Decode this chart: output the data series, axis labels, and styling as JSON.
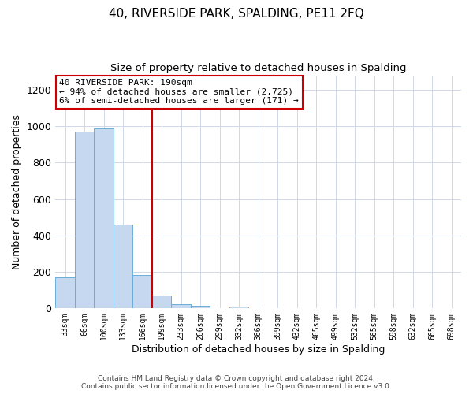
{
  "title": "40, RIVERSIDE PARK, SPALDING, PE11 2FQ",
  "subtitle": "Size of property relative to detached houses in Spalding",
  "xlabel": "Distribution of detached houses by size in Spalding",
  "ylabel": "Number of detached properties",
  "bar_labels": [
    "33sqm",
    "66sqm",
    "100sqm",
    "133sqm",
    "166sqm",
    "199sqm",
    "233sqm",
    "266sqm",
    "299sqm",
    "332sqm",
    "366sqm",
    "399sqm",
    "432sqm",
    "465sqm",
    "499sqm",
    "532sqm",
    "565sqm",
    "598sqm",
    "632sqm",
    "665sqm",
    "698sqm"
  ],
  "bar_values": [
    170,
    970,
    990,
    460,
    185,
    70,
    25,
    15,
    0,
    10,
    0,
    0,
    0,
    0,
    0,
    0,
    0,
    0,
    0,
    0,
    0
  ],
  "bar_color": "#c5d8f0",
  "bar_edge_color": "#6aaed6",
  "ylim": [
    0,
    1280
  ],
  "yticks": [
    0,
    200,
    400,
    600,
    800,
    1000,
    1200
  ],
  "red_line_x": 4.5,
  "annotation_title": "40 RIVERSIDE PARK: 190sqm",
  "annotation_line1": "← 94% of detached houses are smaller (2,725)",
  "annotation_line2": "6% of semi-detached houses are larger (171) →",
  "annotation_box_color": "#ffffff",
  "annotation_box_edge": "#cc0000",
  "footer_line1": "Contains HM Land Registry data © Crown copyright and database right 2024.",
  "footer_line2": "Contains public sector information licensed under the Open Government Licence v3.0.",
  "background_color": "#ffffff",
  "grid_color": "#d0d8e8"
}
